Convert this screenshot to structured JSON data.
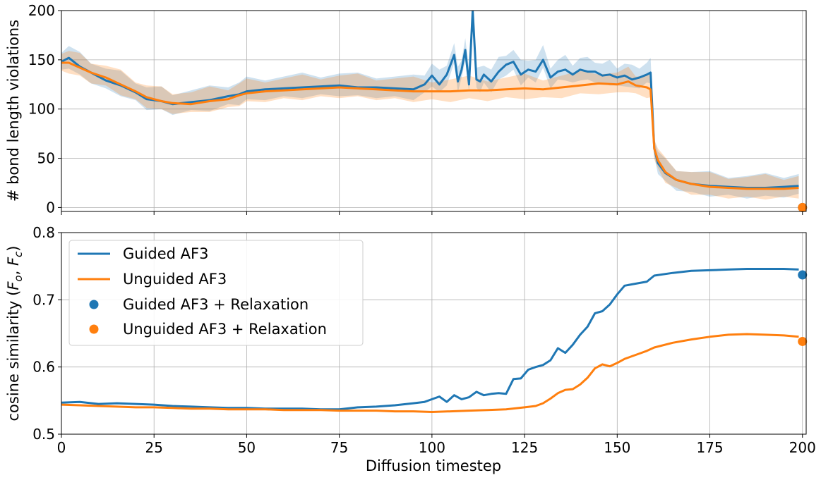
{
  "chart_data": [
    {
      "type": "line",
      "ylabel": "# bond length violations",
      "xlabel": "",
      "xlim": [
        0,
        201
      ],
      "ylim": [
        -4,
        200
      ],
      "xticks": [
        0,
        25,
        50,
        75,
        100,
        125,
        150,
        175,
        200
      ],
      "yticks": [
        0,
        50,
        100,
        150,
        200
      ],
      "grid": true,
      "series": [
        {
          "name": "Guided AF3",
          "color": "#1f77b4",
          "band": true,
          "x": [
            0,
            2,
            5,
            8,
            12,
            16,
            20,
            23,
            27,
            30,
            35,
            40,
            45,
            48,
            50,
            55,
            60,
            65,
            70,
            75,
            80,
            85,
            90,
            95,
            98,
            100,
            102,
            104,
            106,
            107,
            108,
            109,
            110,
            111,
            112,
            113,
            114,
            116,
            118,
            120,
            122,
            124,
            126,
            128,
            130,
            132,
            134,
            136,
            138,
            140,
            142,
            144,
            146,
            148,
            150,
            152,
            154,
            156,
            158,
            159,
            160,
            161,
            163,
            166,
            170,
            175,
            180,
            185,
            190,
            195,
            199
          ],
          "values": [
            148,
            152,
            143,
            137,
            129,
            124,
            117,
            110,
            108,
            105,
            107,
            109,
            113,
            115,
            118,
            120,
            121,
            122,
            123,
            124,
            122,
            122,
            121,
            120,
            125,
            134,
            125,
            135,
            155,
            128,
            140,
            160,
            125,
            200,
            130,
            128,
            135,
            128,
            138,
            145,
            148,
            135,
            140,
            138,
            150,
            132,
            138,
            140,
            135,
            140,
            138,
            138,
            134,
            135,
            132,
            134,
            130,
            132,
            135,
            137,
            60,
            45,
            35,
            28,
            24,
            22,
            21,
            20,
            20,
            21,
            22
          ]
        },
        {
          "name": "Unguided AF3",
          "color": "#ff7f0e",
          "band": true,
          "x": [
            0,
            2,
            5,
            8,
            12,
            16,
            20,
            23,
            27,
            30,
            35,
            40,
            45,
            48,
            50,
            55,
            60,
            65,
            70,
            75,
            80,
            85,
            90,
            95,
            100,
            105,
            110,
            115,
            120,
            125,
            130,
            135,
            140,
            145,
            150,
            153,
            155,
            158,
            159,
            160,
            161,
            163,
            166,
            170,
            175,
            180,
            185,
            190,
            195,
            199
          ],
          "values": [
            147,
            147,
            142,
            137,
            132,
            125,
            118,
            112,
            108,
            106,
            105,
            108,
            110,
            114,
            116,
            118,
            119,
            120,
            121,
            122,
            121,
            120,
            119,
            118,
            118,
            118,
            119,
            119,
            120,
            121,
            120,
            122,
            124,
            126,
            125,
            128,
            124,
            122,
            120,
            60,
            48,
            36,
            28,
            24,
            21,
            20,
            19,
            19,
            19,
            20
          ]
        }
      ],
      "points": [
        {
          "name": "Guided AF3 + Relaxation",
          "x": 200,
          "y": 0,
          "color": "#1f77b4"
        },
        {
          "name": "Unguided AF3 + Relaxation",
          "x": 200,
          "y": 0,
          "color": "#ff7f0e"
        }
      ]
    },
    {
      "type": "line",
      "ylabel_prefix": "cosine similarity (",
      "ylabel_f1": "F",
      "ylabel_s1": "o",
      "ylabel_sep": ", ",
      "ylabel_f2": "F",
      "ylabel_s2": "c",
      "ylabel_suffix": ")",
      "xlabel": "Diffusion timestep",
      "xlim": [
        0,
        201
      ],
      "ylim": [
        0.5,
        0.8
      ],
      "xticks": [
        0,
        25,
        50,
        75,
        100,
        125,
        150,
        175,
        200
      ],
      "yticks": [
        0.5,
        0.6,
        0.7,
        0.8
      ],
      "grid": true,
      "legend_position": "upper-left",
      "series": [
        {
          "name": "Guided AF3",
          "color": "#1f77b4",
          "x": [
            0,
            5,
            10,
            15,
            20,
            25,
            30,
            35,
            40,
            45,
            50,
            55,
            60,
            65,
            70,
            75,
            80,
            85,
            90,
            95,
            98,
            100,
            102,
            104,
            106,
            108,
            110,
            112,
            114,
            116,
            118,
            120,
            122,
            124,
            126,
            128,
            130,
            132,
            134,
            136,
            138,
            140,
            142,
            144,
            146,
            148,
            150,
            152,
            154,
            156,
            158,
            160,
            165,
            170,
            175,
            180,
            185,
            190,
            195,
            199
          ],
          "values": [
            0.547,
            0.548,
            0.545,
            0.546,
            0.545,
            0.544,
            0.542,
            0.541,
            0.54,
            0.539,
            0.539,
            0.538,
            0.538,
            0.538,
            0.537,
            0.537,
            0.54,
            0.541,
            0.543,
            0.546,
            0.548,
            0.552,
            0.556,
            0.548,
            0.558,
            0.552,
            0.555,
            0.563,
            0.558,
            0.56,
            0.561,
            0.56,
            0.582,
            0.583,
            0.596,
            0.6,
            0.603,
            0.61,
            0.628,
            0.621,
            0.633,
            0.648,
            0.66,
            0.68,
            0.683,
            0.693,
            0.708,
            0.721,
            0.723,
            0.725,
            0.727,
            0.736,
            0.74,
            0.743,
            0.744,
            0.745,
            0.746,
            0.746,
            0.746,
            0.745
          ]
        },
        {
          "name": "Unguided AF3",
          "color": "#ff7f0e",
          "x": [
            0,
            5,
            10,
            15,
            20,
            25,
            30,
            35,
            40,
            45,
            50,
            55,
            60,
            65,
            70,
            75,
            80,
            85,
            90,
            95,
            100,
            105,
            110,
            115,
            120,
            125,
            128,
            130,
            132,
            134,
            136,
            138,
            140,
            142,
            144,
            146,
            148,
            150,
            152,
            154,
            156,
            158,
            160,
            165,
            170,
            175,
            180,
            185,
            190,
            195,
            199
          ],
          "values": [
            0.544,
            0.543,
            0.542,
            0.541,
            0.54,
            0.54,
            0.539,
            0.538,
            0.538,
            0.537,
            0.537,
            0.537,
            0.536,
            0.536,
            0.536,
            0.535,
            0.535,
            0.535,
            0.534,
            0.534,
            0.533,
            0.534,
            0.535,
            0.536,
            0.537,
            0.54,
            0.542,
            0.546,
            0.553,
            0.561,
            0.566,
            0.567,
            0.574,
            0.584,
            0.598,
            0.604,
            0.601,
            0.606,
            0.612,
            0.616,
            0.62,
            0.624,
            0.629,
            0.636,
            0.641,
            0.645,
            0.648,
            0.649,
            0.648,
            0.647,
            0.645
          ]
        }
      ],
      "points": [
        {
          "name": "Guided AF3 + Relaxation",
          "x": 200,
          "y": 0.737,
          "color": "#1f77b4"
        },
        {
          "name": "Unguided AF3 + Relaxation",
          "x": 200,
          "y": 0.638,
          "color": "#ff7f0e"
        }
      ]
    }
  ]
}
